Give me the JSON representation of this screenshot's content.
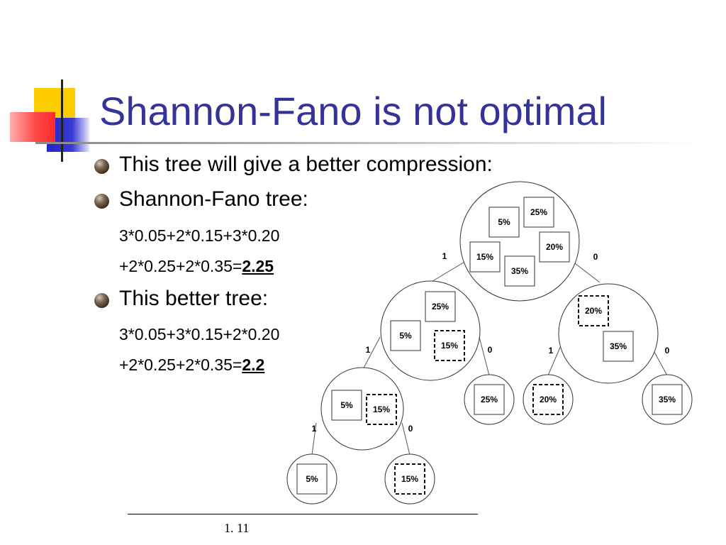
{
  "slide": {
    "title": "Shannon-Fano is not optimal",
    "bullets": [
      "This tree will give a better compression:",
      "Shannon-Fano tree:",
      "This better tree:"
    ],
    "formulas": {
      "sf_line1": "3*0.05+2*0.15+3*0.20",
      "sf_line2_prefix": "+2*0.25+2*0.35=",
      "sf_result": "2.25",
      "better_line1": "3*0.05+3*0.15+2*0.20",
      "better_line2_prefix": "+2*0.25+2*0.35=",
      "better_result": "2.2"
    },
    "slide_number": "1. 11",
    "colors": {
      "title": "#333399",
      "deco_yellow": "#FFCC00",
      "deco_blue": "#3333CC",
      "deco_red": "#FF3333"
    }
  },
  "tree": {
    "root": {
      "items": [
        "25%",
        "5%",
        "20%",
        "15%",
        "35%"
      ],
      "left_edge": "1",
      "right_edge": "0"
    },
    "left_node": {
      "items": [
        "25%",
        "5%",
        "15%"
      ],
      "left_edge": "1",
      "right_edge": "0"
    },
    "right_node": {
      "items": [
        "20%",
        "35%"
      ],
      "left_edge": "1",
      "right_edge": "0"
    },
    "left_left_node": {
      "items": [
        "5%",
        "15%"
      ],
      "left_edge": "1",
      "right_edge": "0"
    },
    "leaves": {
      "leaf_5": "5%",
      "leaf_15": "15%",
      "leaf_25": "25%",
      "leaf_20": "20%",
      "leaf_35": "35%"
    }
  }
}
